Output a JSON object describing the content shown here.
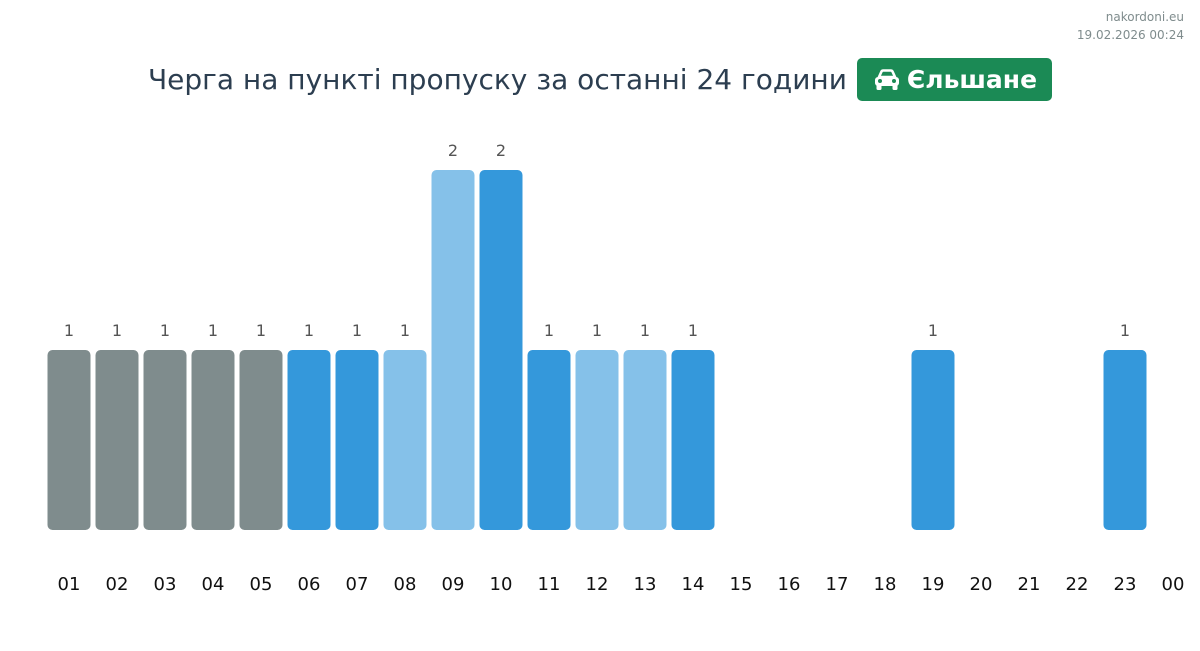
{
  "watermark": {
    "site": "nakordoni.eu",
    "timestamp": "19.02.2026 00:24"
  },
  "header": {
    "title": "Черга на пункті пропуску за останні 24 години",
    "badge_icon": "car-icon",
    "badge_label": "Єльшане",
    "badge_color": "#1b8a55"
  },
  "colors": {
    "gray": "#7f8c8d",
    "blue": "#3498db",
    "light_blue": "#85c1e9"
  },
  "chart_data": {
    "type": "bar",
    "categories": [
      "01",
      "02",
      "03",
      "04",
      "05",
      "06",
      "07",
      "08",
      "09",
      "10",
      "11",
      "12",
      "13",
      "14",
      "15",
      "16",
      "17",
      "18",
      "19",
      "20",
      "21",
      "22",
      "23",
      "00"
    ],
    "values": [
      1,
      1,
      1,
      1,
      1,
      1,
      1,
      1,
      2,
      2,
      1,
      1,
      1,
      1,
      0,
      0,
      0,
      0,
      1,
      0,
      0,
      0,
      1,
      0
    ],
    "bar_colors": [
      "gray",
      "gray",
      "gray",
      "gray",
      "gray",
      "blue",
      "blue",
      "light_blue",
      "light_blue",
      "blue",
      "blue",
      "light_blue",
      "light_blue",
      "blue",
      "blue",
      "blue",
      "blue",
      "blue",
      "blue",
      "blue",
      "blue",
      "blue",
      "blue",
      "blue"
    ],
    "title": "Черга на пункті пропуску за останні 24 години",
    "xlabel": "",
    "ylabel": "",
    "ylim": [
      0,
      2
    ],
    "grid": false,
    "legend": "none"
  }
}
